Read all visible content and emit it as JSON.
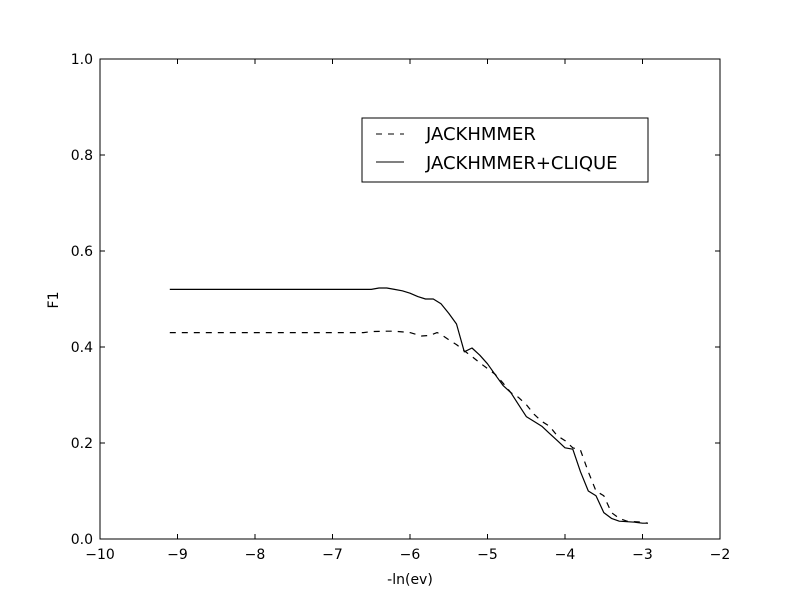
{
  "chart_data": {
    "type": "line",
    "title": "",
    "xlabel": "-ln(ev)",
    "ylabel": "F1",
    "xlim": [
      -10,
      -2
    ],
    "ylim": [
      0.0,
      1.0
    ],
    "xticks": [
      -10,
      -9,
      -8,
      -7,
      -6,
      -5,
      -4,
      -3,
      -2
    ],
    "yticks": [
      0.0,
      0.2,
      0.4,
      0.6,
      0.8,
      1.0
    ],
    "xtick_labels": [
      "−10",
      "−9",
      "−8",
      "−7",
      "−6",
      "−5",
      "−4",
      "−3",
      "−2"
    ],
    "ytick_labels": [
      "0.0",
      "0.2",
      "0.4",
      "0.6",
      "0.8",
      "1.0"
    ],
    "grid": false,
    "legend_position": "top-right",
    "series": [
      {
        "name": "JACKHMMER",
        "style": "dashed",
        "color": "#000000",
        "x": [
          -9.1,
          -8.5,
          -8.0,
          -7.5,
          -7.0,
          -6.6,
          -6.5,
          -6.3,
          -6.2,
          -6.0,
          -5.85,
          -5.75,
          -5.65,
          -5.6,
          -5.5,
          -5.4,
          -5.3,
          -5.2,
          -5.1,
          -5.0,
          -4.9,
          -4.8,
          -4.7,
          -4.6,
          -4.5,
          -4.4,
          -4.3,
          -4.2,
          -4.1,
          -4.0,
          -3.9,
          -3.8,
          -3.7,
          -3.6,
          -3.5,
          -3.4,
          -3.3,
          -3.2,
          -3.1,
          -3.0,
          -2.93
        ],
        "y": [
          0.43,
          0.43,
          0.43,
          0.43,
          0.43,
          0.43,
          0.432,
          0.433,
          0.433,
          0.43,
          0.423,
          0.424,
          0.43,
          0.426,
          0.415,
          0.405,
          0.392,
          0.38,
          0.367,
          0.355,
          0.343,
          0.325,
          0.305,
          0.295,
          0.28,
          0.26,
          0.245,
          0.235,
          0.215,
          0.205,
          0.19,
          0.185,
          0.14,
          0.1,
          0.09,
          0.055,
          0.043,
          0.037,
          0.036,
          0.035,
          0.033
        ]
      },
      {
        "name": "JACKHMMER+CLIQUE",
        "style": "solid",
        "color": "#000000",
        "x": [
          -9.1,
          -8.5,
          -8.0,
          -7.5,
          -7.0,
          -6.6,
          -6.5,
          -6.4,
          -6.3,
          -6.2,
          -6.1,
          -6.0,
          -5.9,
          -5.8,
          -5.7,
          -5.6,
          -5.5,
          -5.4,
          -5.3,
          -5.2,
          -5.1,
          -5.0,
          -4.9,
          -4.8,
          -4.7,
          -4.6,
          -4.5,
          -4.4,
          -4.3,
          -4.2,
          -4.1,
          -4.0,
          -3.9,
          -3.8,
          -3.7,
          -3.6,
          -3.5,
          -3.4,
          -3.3,
          -3.2,
          -3.1,
          -3.0,
          -2.93
        ],
        "y": [
          0.52,
          0.52,
          0.52,
          0.52,
          0.52,
          0.52,
          0.52,
          0.523,
          0.523,
          0.52,
          0.517,
          0.512,
          0.505,
          0.5,
          0.5,
          0.49,
          0.47,
          0.448,
          0.39,
          0.398,
          0.383,
          0.365,
          0.342,
          0.32,
          0.305,
          0.28,
          0.255,
          0.245,
          0.235,
          0.22,
          0.205,
          0.19,
          0.187,
          0.14,
          0.1,
          0.09,
          0.055,
          0.043,
          0.037,
          0.036,
          0.035,
          0.033,
          0.033
        ]
      }
    ]
  }
}
